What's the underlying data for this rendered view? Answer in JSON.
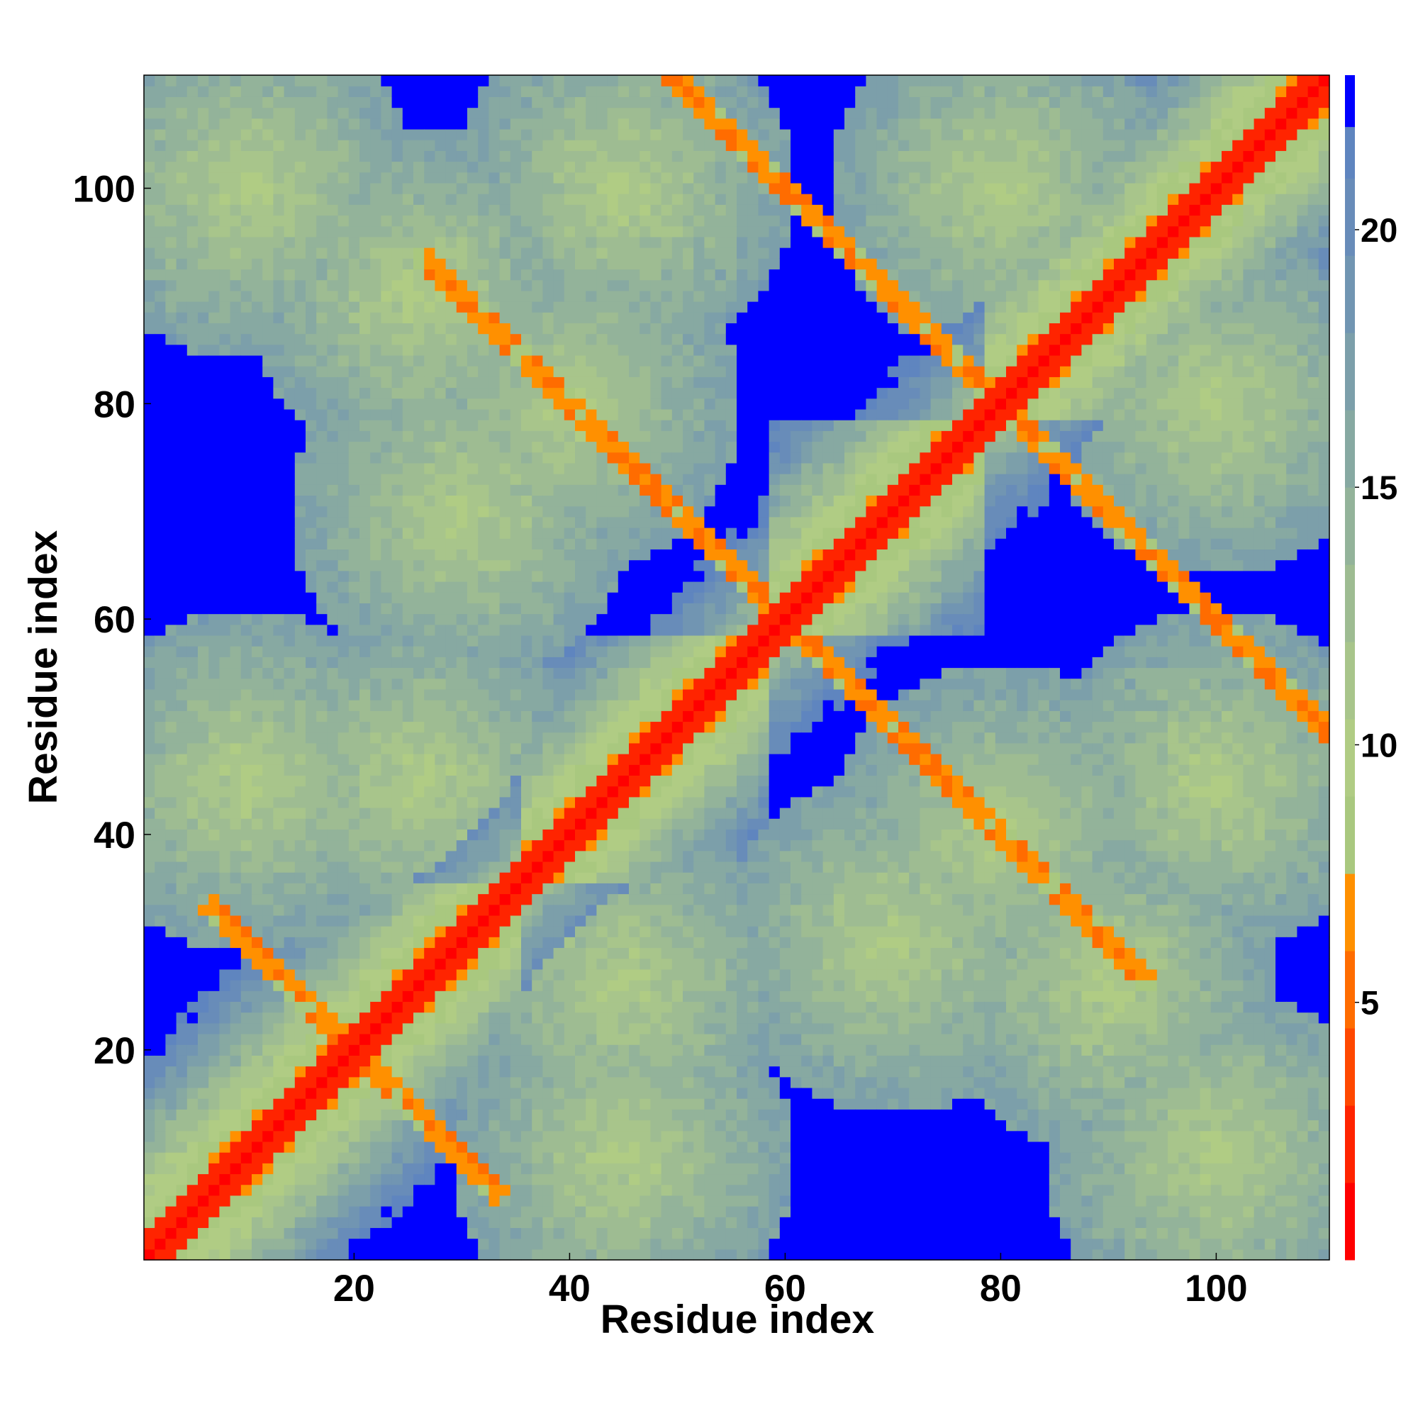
{
  "chart_data": {
    "type": "heatmap",
    "title": "",
    "xlabel": "Residue index",
    "ylabel": "Residue index",
    "xlim": [
      1,
      110
    ],
    "ylim": [
      1,
      110
    ],
    "xticks": [
      20,
      40,
      60,
      80,
      100
    ],
    "yticks": [
      20,
      40,
      60,
      80,
      100
    ],
    "grid": false,
    "colorbar": {
      "position": "right",
      "range": [
        0,
        23
      ],
      "ticks": [
        5,
        10,
        15,
        20
      ],
      "bands": [
        {
          "from": 0,
          "to": 1.5,
          "color": "#ff0000"
        },
        {
          "from": 1.5,
          "to": 3,
          "color": "#ff2400"
        },
        {
          "from": 3,
          "to": 4.5,
          "color": "#ff4800"
        },
        {
          "from": 4.5,
          "to": 6,
          "color": "#ff6c00"
        },
        {
          "from": 6,
          "to": 7.5,
          "color": "#ff9000"
        },
        {
          "from": 7.5,
          "to": 9,
          "color": "#a9c87f"
        },
        {
          "from": 9,
          "to": 10.5,
          "color": "#b0cc84"
        },
        {
          "from": 10.5,
          "to": 12,
          "color": "#a8c58b"
        },
        {
          "from": 12,
          "to": 13.5,
          "color": "#9ebc92"
        },
        {
          "from": 13.5,
          "to": 15,
          "color": "#93b39a"
        },
        {
          "from": 15,
          "to": 16.5,
          "color": "#87a9a2"
        },
        {
          "from": 16.5,
          "to": 18,
          "color": "#7c9faa"
        },
        {
          "from": 18,
          "to": 19.5,
          "color": "#7195b2"
        },
        {
          "from": 19.5,
          "to": 21,
          "color": "#688cb9"
        },
        {
          "from": 21,
          "to": 22,
          "color": "#5f85bf"
        },
        {
          "from": 22,
          "to": 23,
          "color": "#0000ff"
        }
      ]
    },
    "description_matrix": "symmetric residue-residue distance map (110 x 110); cutoff > 22 shown blue",
    "diagonal": {
      "value": 0,
      "color": "#ff0000"
    },
    "structure": {
      "domains": [
        [
          1,
          35
        ],
        [
          36,
          58
        ],
        [
          59,
          78
        ],
        [
          79,
          110
        ]
      ],
      "antidiagonal_contacts": [
        [
          20,
          20,
          18
        ],
        [
          60,
          60,
          18
        ],
        [
          80,
          80,
          18
        ]
      ]
    }
  }
}
